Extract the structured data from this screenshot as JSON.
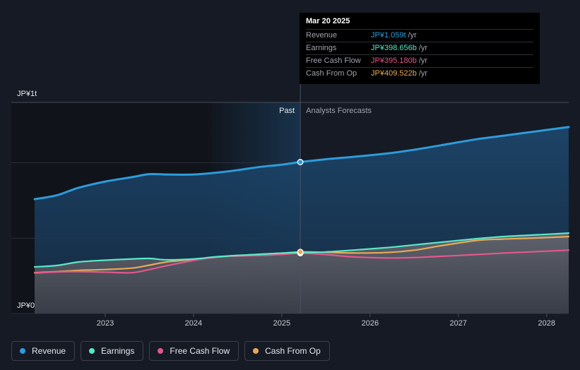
{
  "chart_data": {
    "type": "area",
    "y_axis_labels": {
      "top": "JP¥1t",
      "bottom": "JP¥0"
    },
    "x_ticks": [
      "2023",
      "2024",
      "2025",
      "2026",
      "2027",
      "2028"
    ],
    "x_range": [
      2022.2,
      2028.25
    ],
    "ylim": [
      0,
      1.2
    ],
    "divider_x": 2025.21,
    "past_label": "Past",
    "forecast_label": "Analysts Forecasts",
    "grid": true,
    "series": [
      {
        "name": "Revenue",
        "color": "#2d9cdb",
        "points": [
          [
            2022.2,
            0.65
          ],
          [
            2022.45,
            0.672
          ],
          [
            2022.7,
            0.715
          ],
          [
            2023.0,
            0.75
          ],
          [
            2023.3,
            0.775
          ],
          [
            2023.5,
            0.792
          ],
          [
            2023.7,
            0.79
          ],
          [
            2024.0,
            0.79
          ],
          [
            2024.25,
            0.8
          ],
          [
            2024.5,
            0.815
          ],
          [
            2024.75,
            0.833
          ],
          [
            2025.0,
            0.846
          ],
          [
            2025.21,
            0.861
          ],
          [
            2025.5,
            0.877
          ],
          [
            2025.8,
            0.89
          ],
          [
            2026.2,
            0.91
          ],
          [
            2026.5,
            0.931
          ],
          [
            2026.8,
            0.956
          ],
          [
            2027.2,
            0.99
          ],
          [
            2027.5,
            1.01
          ],
          [
            2027.8,
            1.03
          ],
          [
            2028.25,
            1.06
          ]
        ]
      },
      {
        "name": "Earnings",
        "color": "#58e8c8",
        "points": [
          [
            2022.2,
            0.265
          ],
          [
            2022.45,
            0.273
          ],
          [
            2022.7,
            0.293
          ],
          [
            2023.0,
            0.303
          ],
          [
            2023.3,
            0.31
          ],
          [
            2023.5,
            0.313
          ],
          [
            2023.7,
            0.305
          ],
          [
            2024.0,
            0.31
          ],
          [
            2024.25,
            0.322
          ],
          [
            2024.5,
            0.33
          ],
          [
            2024.75,
            0.336
          ],
          [
            2025.0,
            0.343
          ],
          [
            2025.21,
            0.346
          ],
          [
            2025.5,
            0.35
          ],
          [
            2025.8,
            0.36
          ],
          [
            2026.2,
            0.375
          ],
          [
            2026.5,
            0.39
          ],
          [
            2026.8,
            0.405
          ],
          [
            2027.2,
            0.425
          ],
          [
            2027.5,
            0.437
          ],
          [
            2027.8,
            0.445
          ],
          [
            2028.25,
            0.457
          ]
        ]
      },
      {
        "name": "Free Cash Flow",
        "color": "#e2578d",
        "points": [
          [
            2022.2,
            0.23
          ],
          [
            2022.45,
            0.236
          ],
          [
            2022.7,
            0.238
          ],
          [
            2023.0,
            0.235
          ],
          [
            2023.3,
            0.232
          ],
          [
            2023.5,
            0.25
          ],
          [
            2023.7,
            0.272
          ],
          [
            2024.0,
            0.302
          ],
          [
            2024.25,
            0.32
          ],
          [
            2024.5,
            0.327
          ],
          [
            2024.75,
            0.33
          ],
          [
            2025.0,
            0.336
          ],
          [
            2025.21,
            0.343
          ],
          [
            2025.5,
            0.335
          ],
          [
            2025.8,
            0.322
          ],
          [
            2026.2,
            0.316
          ],
          [
            2026.5,
            0.318
          ],
          [
            2026.8,
            0.325
          ],
          [
            2027.2,
            0.335
          ],
          [
            2027.5,
            0.343
          ],
          [
            2027.8,
            0.35
          ],
          [
            2028.25,
            0.36
          ]
        ]
      },
      {
        "name": "Cash From Op",
        "color": "#e7a958",
        "points": [
          [
            2022.2,
            0.232
          ],
          [
            2022.45,
            0.238
          ],
          [
            2022.7,
            0.245
          ],
          [
            2023.0,
            0.25
          ],
          [
            2023.3,
            0.258
          ],
          [
            2023.5,
            0.275
          ],
          [
            2023.7,
            0.293
          ],
          [
            2024.0,
            0.308
          ],
          [
            2024.25,
            0.32
          ],
          [
            2024.5,
            0.33
          ],
          [
            2024.75,
            0.337
          ],
          [
            2025.0,
            0.343
          ],
          [
            2025.21,
            0.35
          ],
          [
            2025.5,
            0.348
          ],
          [
            2025.8,
            0.344
          ],
          [
            2026.2,
            0.347
          ],
          [
            2026.5,
            0.36
          ],
          [
            2026.8,
            0.385
          ],
          [
            2027.2,
            0.415
          ],
          [
            2027.5,
            0.423
          ],
          [
            2027.8,
            0.428
          ],
          [
            2028.25,
            0.437
          ]
        ]
      }
    ]
  },
  "tooltip": {
    "date": "Mar 20 2025",
    "rows": [
      {
        "name": "Revenue",
        "value": "JP¥1.059t",
        "unit": "/yr",
        "color": "#2d9cdb"
      },
      {
        "name": "Earnings",
        "value": "JP¥398.656b",
        "unit": "/yr",
        "color": "#58e8c8"
      },
      {
        "name": "Free Cash Flow",
        "value": "JP¥395.180b",
        "unit": "/yr",
        "color": "#e2578d"
      },
      {
        "name": "Cash From Op",
        "value": "JP¥409.522b",
        "unit": "/yr",
        "color": "#e7a958"
      }
    ]
  },
  "legend": [
    {
      "label": "Revenue",
      "color": "#2d9cdb"
    },
    {
      "label": "Earnings",
      "color": "#58e8c8"
    },
    {
      "label": "Free Cash Flow",
      "color": "#e2578d"
    },
    {
      "label": "Cash From Op",
      "color": "#e7a958"
    }
  ]
}
